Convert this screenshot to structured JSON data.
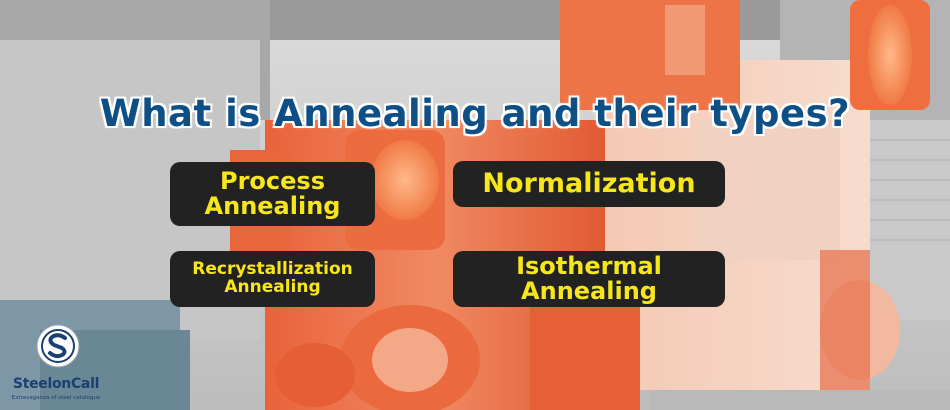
{
  "banner": {
    "title": "What is Annealing and their types?",
    "types": [
      {
        "line1": "Process",
        "line2": "Annealing"
      },
      {
        "line1": "Normalization"
      },
      {
        "line1": "Recrystallization",
        "line2": "Annealing"
      },
      {
        "line1": "Isothermal",
        "line2": "Annealing"
      }
    ]
  },
  "logo": {
    "name": "SteelonCall",
    "tagline": "Extravaganza of steel catalogue"
  },
  "colors": {
    "title": "#0e4f86",
    "pill_bg": "#222222",
    "pill_text": "#f7e61c",
    "steel": "#e8643a"
  }
}
